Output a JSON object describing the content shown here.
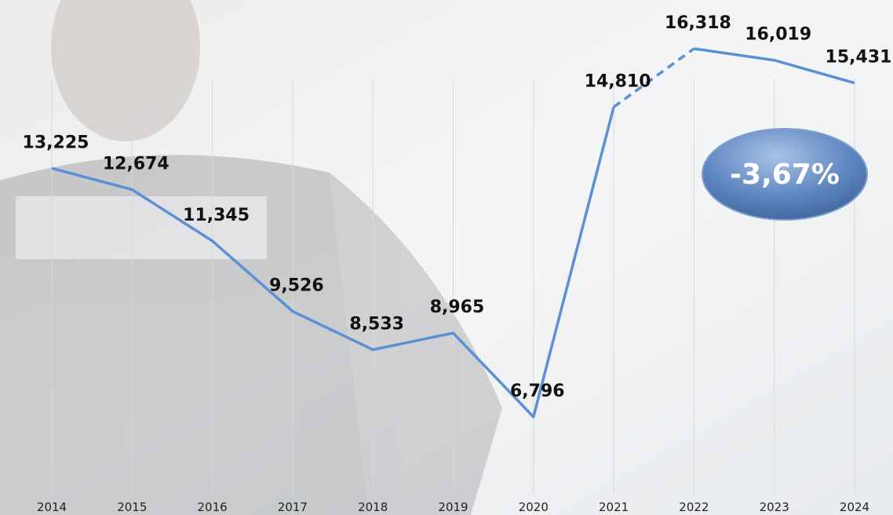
{
  "chart_data": {
    "type": "line",
    "categories": [
      "2014",
      "2015",
      "2016",
      "2017",
      "2018",
      "2019",
      "2020",
      "2021",
      "2022",
      "2023",
      "2024"
    ],
    "values": [
      13225,
      12674,
      11345,
      9526,
      8533,
      8965,
      6796,
      14810,
      16318,
      16019,
      15431
    ],
    "value_labels": [
      "13,225",
      "12,674",
      "11,345",
      "9,526",
      "8,533",
      "8,965",
      "6,796",
      "14,810",
      "16,318",
      "16,019",
      "15,431"
    ],
    "color": "#5b8fd6",
    "dashed_segment": [
      7,
      8
    ],
    "grid": true,
    "annotation": "-3,67%"
  }
}
